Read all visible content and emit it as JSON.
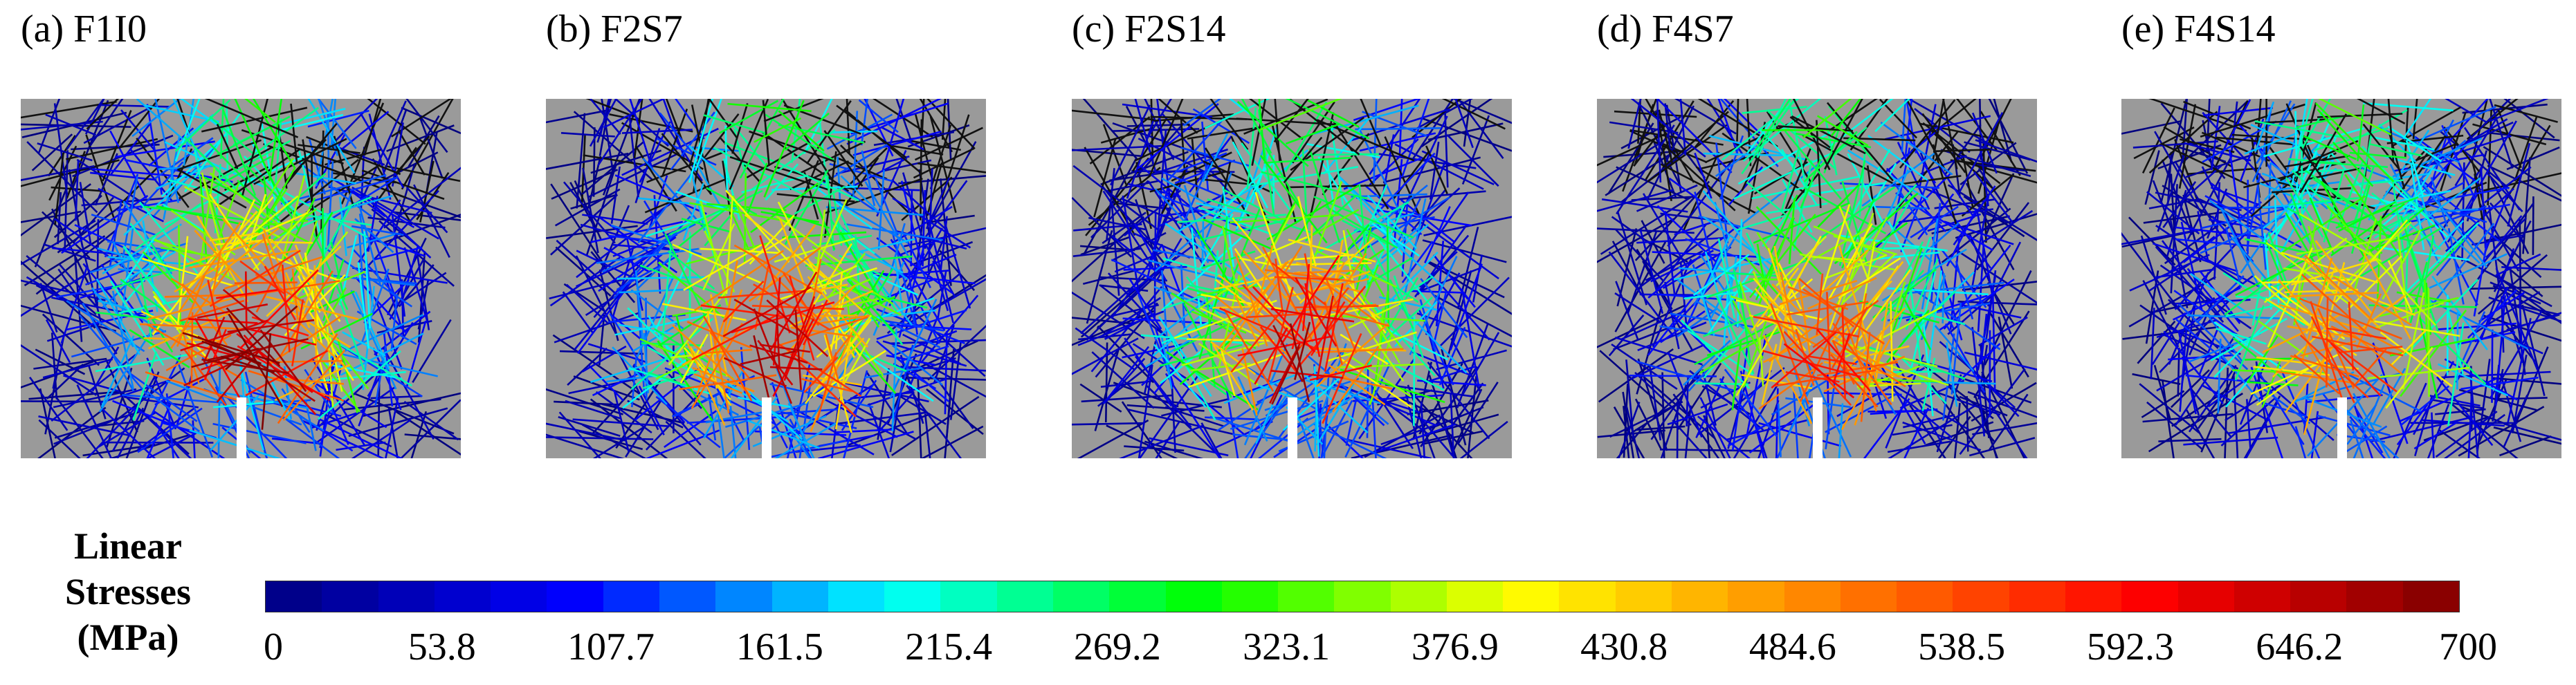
{
  "panels": [
    {
      "label": "(a) F1I0",
      "variant": 0
    },
    {
      "label": "(b) F2S7",
      "variant": 1
    },
    {
      "label": "(c) F2S14",
      "variant": 2
    },
    {
      "label": "(d) F4S7",
      "variant": 3
    },
    {
      "label": "(e) F4S14",
      "variant": 4
    }
  ],
  "legend": {
    "title_lines": [
      "Linear",
      "Stresses",
      "(MPa)"
    ],
    "min": 0,
    "max": 700,
    "ticks": [
      "0",
      "53.8",
      "107.7",
      "161.5",
      "215.4",
      "269.2",
      "323.1",
      "376.9",
      "430.8",
      "484.6",
      "538.5",
      "592.3",
      "646.2",
      "700"
    ],
    "colors": [
      "#00007f",
      "#0000ff",
      "#00ffff",
      "#00ff00",
      "#ffff00",
      "#ff7f00",
      "#ff0000",
      "#7f0000"
    ]
  }
}
